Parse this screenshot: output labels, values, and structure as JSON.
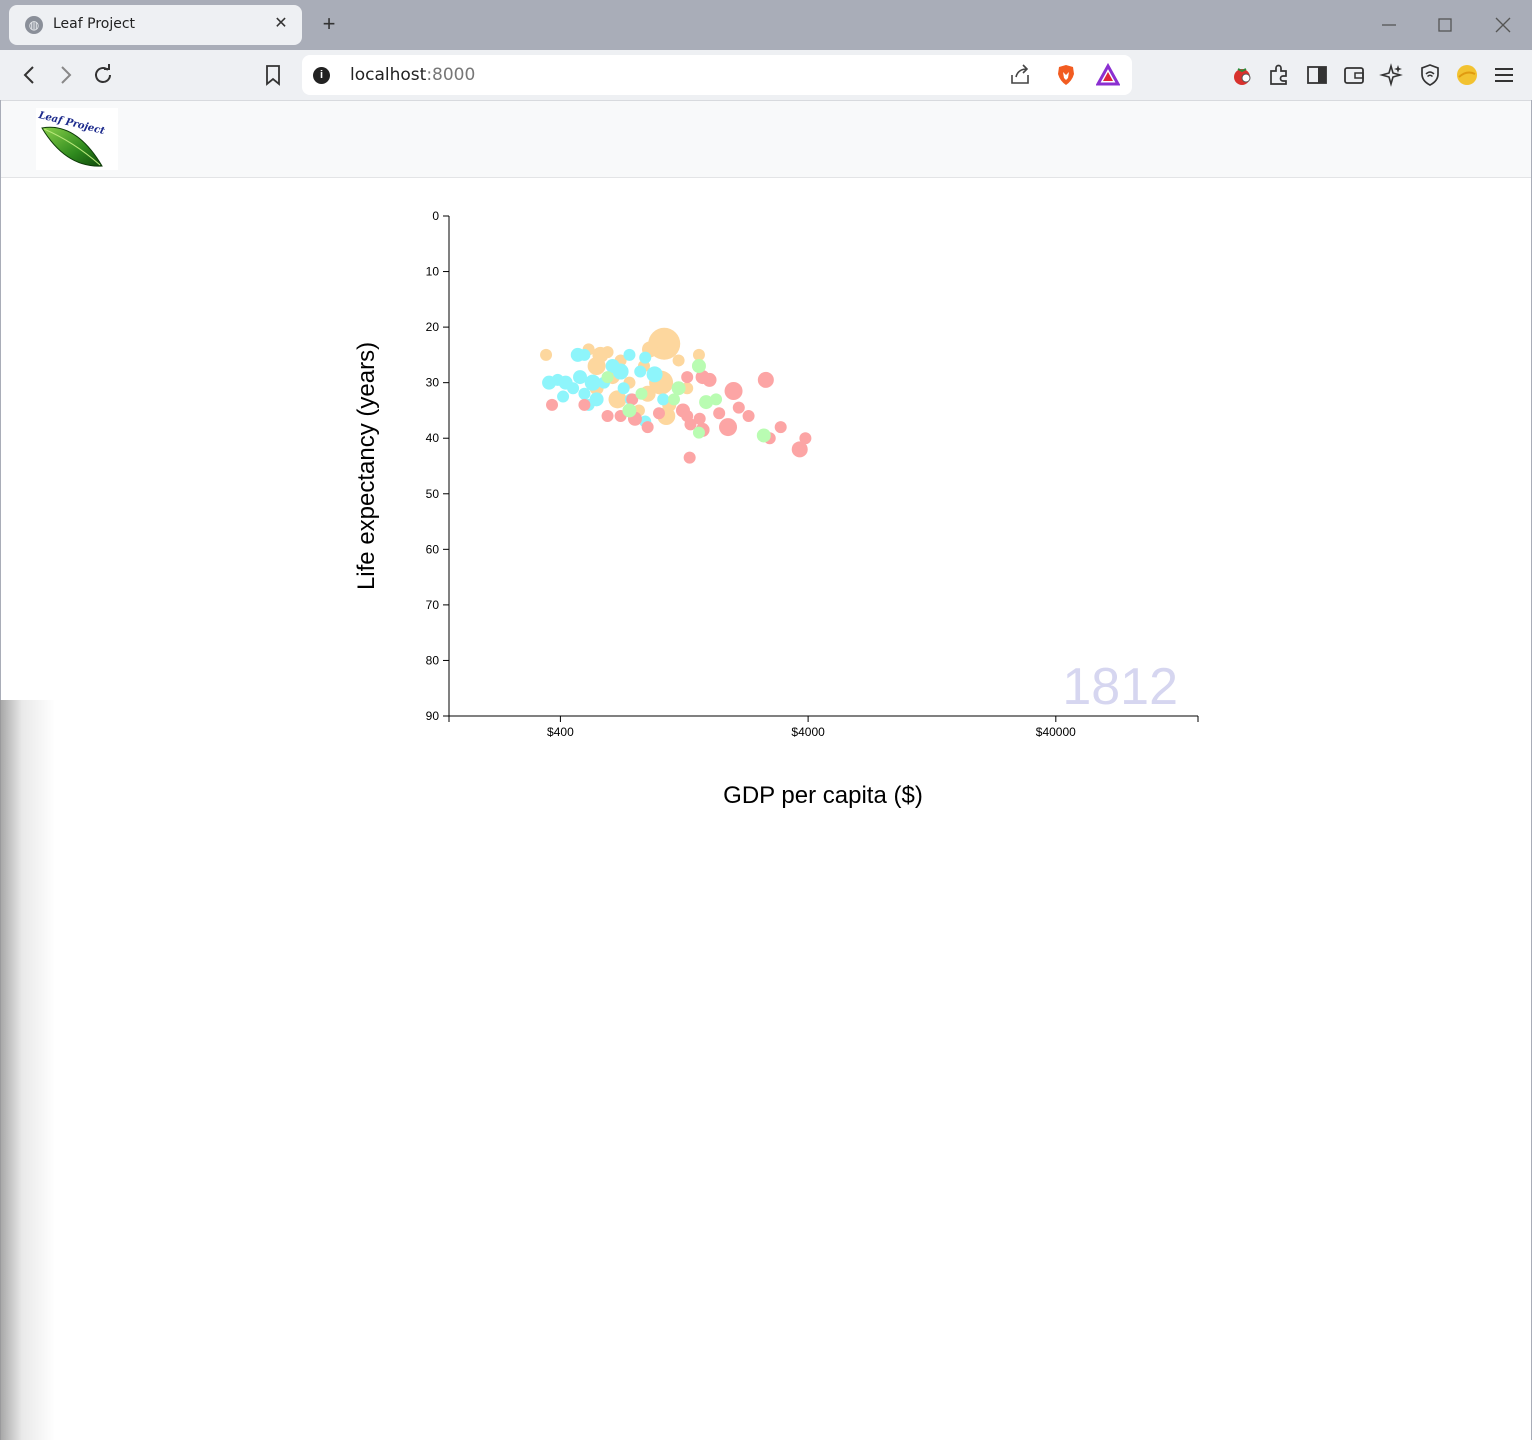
{
  "browser": {
    "tab_title": "Leaf Project",
    "tab_favicon": "globe-icon",
    "new_tab_glyph": "+",
    "close_glyph": "✕",
    "url_host": "localhost",
    "url_port": ":8000"
  },
  "page": {
    "logo_text": "Leaf Project"
  },
  "chart_data": {
    "type": "scatter",
    "title": "",
    "xlabel": "GDP per capita ($)",
    "ylabel": "Life expectancy (years)",
    "x_scale": "log",
    "xlim": [
      142,
      150000
    ],
    "ylim": [
      0,
      90
    ],
    "x_ticks": [
      {
        "value": 400,
        "label": "$400"
      },
      {
        "value": 4000,
        "label": "$4000"
      },
      {
        "value": 40000,
        "label": "$40000"
      }
    ],
    "y_ticks": [
      0,
      10,
      20,
      30,
      40,
      50,
      60,
      70,
      80,
      90
    ],
    "year": "1812",
    "colors": {
      "asia": "#fdd79e",
      "europe": "#fca5a5",
      "africa": "#8ef5fb",
      "americas": "#b9fcb2",
      "year": "#d6d6f0"
    },
    "points": [
      {
        "x": 350,
        "y": 25,
        "r": 6,
        "c": "asia"
      },
      {
        "x": 520,
        "y": 24,
        "r": 6,
        "c": "asia"
      },
      {
        "x": 580,
        "y": 25,
        "r": 8,
        "c": "asia"
      },
      {
        "x": 620,
        "y": 24.5,
        "r": 6,
        "c": "asia"
      },
      {
        "x": 560,
        "y": 27,
        "r": 9,
        "c": "asia"
      },
      {
        "x": 1050,
        "y": 23,
        "r": 16,
        "c": "asia"
      },
      {
        "x": 920,
        "y": 24,
        "r": 8,
        "c": "asia"
      },
      {
        "x": 1450,
        "y": 25,
        "r": 6,
        "c": "asia"
      },
      {
        "x": 1200,
        "y": 26,
        "r": 6,
        "c": "asia"
      },
      {
        "x": 700,
        "y": 26,
        "r": 6,
        "c": "asia"
      },
      {
        "x": 870,
        "y": 27,
        "r": 6,
        "c": "asia"
      },
      {
        "x": 650,
        "y": 29,
        "r": 7,
        "c": "asia"
      },
      {
        "x": 760,
        "y": 30,
        "r": 6,
        "c": "asia"
      },
      {
        "x": 1020,
        "y": 30,
        "r": 12,
        "c": "asia"
      },
      {
        "x": 560,
        "y": 31,
        "r": 7,
        "c": "asia"
      },
      {
        "x": 680,
        "y": 33,
        "r": 9,
        "c": "asia"
      },
      {
        "x": 900,
        "y": 32,
        "r": 8,
        "c": "asia"
      },
      {
        "x": 1100,
        "y": 34,
        "r": 7,
        "c": "asia"
      },
      {
        "x": 1070,
        "y": 36,
        "r": 9,
        "c": "asia"
      },
      {
        "x": 830,
        "y": 35,
        "r": 6,
        "c": "asia"
      },
      {
        "x": 1300,
        "y": 31,
        "r": 6,
        "c": "asia"
      },
      {
        "x": 360,
        "y": 30,
        "r": 7,
        "c": "africa"
      },
      {
        "x": 390,
        "y": 29.5,
        "r": 6,
        "c": "africa"
      },
      {
        "x": 420,
        "y": 30,
        "r": 7,
        "c": "africa"
      },
      {
        "x": 450,
        "y": 31,
        "r": 6,
        "c": "africa"
      },
      {
        "x": 470,
        "y": 25,
        "r": 7,
        "c": "africa"
      },
      {
        "x": 500,
        "y": 25,
        "r": 6,
        "c": "africa"
      },
      {
        "x": 480,
        "y": 29,
        "r": 7,
        "c": "africa"
      },
      {
        "x": 540,
        "y": 30,
        "r": 8,
        "c": "africa"
      },
      {
        "x": 500,
        "y": 32,
        "r": 6,
        "c": "africa"
      },
      {
        "x": 410,
        "y": 32.5,
        "r": 6,
        "c": "africa"
      },
      {
        "x": 560,
        "y": 33,
        "r": 7,
        "c": "africa"
      },
      {
        "x": 600,
        "y": 30,
        "r": 6,
        "c": "africa"
      },
      {
        "x": 650,
        "y": 27,
        "r": 7,
        "c": "africa"
      },
      {
        "x": 700,
        "y": 28,
        "r": 8,
        "c": "africa"
      },
      {
        "x": 760,
        "y": 25,
        "r": 6,
        "c": "africa"
      },
      {
        "x": 720,
        "y": 31,
        "r": 6,
        "c": "africa"
      },
      {
        "x": 880,
        "y": 25.5,
        "r": 6,
        "c": "africa"
      },
      {
        "x": 840,
        "y": 28,
        "r": 6,
        "c": "africa"
      },
      {
        "x": 960,
        "y": 28.5,
        "r": 8,
        "c": "africa"
      },
      {
        "x": 770,
        "y": 33,
        "r": 6,
        "c": "africa"
      },
      {
        "x": 1040,
        "y": 33,
        "r": 6,
        "c": "africa"
      },
      {
        "x": 880,
        "y": 37,
        "r": 6,
        "c": "africa"
      },
      {
        "x": 520,
        "y": 34,
        "r": 6,
        "c": "africa"
      },
      {
        "x": 370,
        "y": 34,
        "r": 6,
        "c": "europe"
      },
      {
        "x": 500,
        "y": 34,
        "r": 6,
        "c": "europe"
      },
      {
        "x": 620,
        "y": 36,
        "r": 6,
        "c": "europe"
      },
      {
        "x": 700,
        "y": 36,
        "r": 6,
        "c": "europe"
      },
      {
        "x": 800,
        "y": 36.5,
        "r": 7,
        "c": "europe"
      },
      {
        "x": 780,
        "y": 33,
        "r": 6,
        "c": "europe"
      },
      {
        "x": 900,
        "y": 38,
        "r": 6,
        "c": "europe"
      },
      {
        "x": 1000,
        "y": 35.5,
        "r": 6,
        "c": "europe"
      },
      {
        "x": 1250,
        "y": 35,
        "r": 7,
        "c": "europe"
      },
      {
        "x": 1340,
        "y": 37.5,
        "r": 6,
        "c": "europe"
      },
      {
        "x": 1300,
        "y": 36,
        "r": 6,
        "c": "europe"
      },
      {
        "x": 1460,
        "y": 36.5,
        "r": 6,
        "c": "europe"
      },
      {
        "x": 1500,
        "y": 38.5,
        "r": 7,
        "c": "europe"
      },
      {
        "x": 1750,
        "y": 35.5,
        "r": 6,
        "c": "europe"
      },
      {
        "x": 1900,
        "y": 38,
        "r": 9,
        "c": "europe"
      },
      {
        "x": 2000,
        "y": 31.5,
        "r": 9,
        "c": "europe"
      },
      {
        "x": 2100,
        "y": 34.5,
        "r": 6,
        "c": "europe"
      },
      {
        "x": 2300,
        "y": 36,
        "r": 6,
        "c": "europe"
      },
      {
        "x": 2700,
        "y": 29.5,
        "r": 8,
        "c": "europe"
      },
      {
        "x": 2800,
        "y": 40,
        "r": 6,
        "c": "europe"
      },
      {
        "x": 3100,
        "y": 38,
        "r": 6,
        "c": "europe"
      },
      {
        "x": 3700,
        "y": 42,
        "r": 8,
        "c": "europe"
      },
      {
        "x": 3900,
        "y": 40,
        "r": 6,
        "c": "europe"
      },
      {
        "x": 1330,
        "y": 43.5,
        "r": 6,
        "c": "europe"
      },
      {
        "x": 1300,
        "y": 29,
        "r": 6,
        "c": "europe"
      },
      {
        "x": 1500,
        "y": 29,
        "r": 7,
        "c": "europe"
      },
      {
        "x": 1600,
        "y": 29.5,
        "r": 7,
        "c": "europe"
      },
      {
        "x": 760,
        "y": 35,
        "r": 7,
        "c": "americas"
      },
      {
        "x": 850,
        "y": 32,
        "r": 6,
        "c": "americas"
      },
      {
        "x": 1150,
        "y": 33,
        "r": 6,
        "c": "americas"
      },
      {
        "x": 1200,
        "y": 31,
        "r": 7,
        "c": "americas"
      },
      {
        "x": 1450,
        "y": 27,
        "r": 7,
        "c": "americas"
      },
      {
        "x": 1550,
        "y": 33.5,
        "r": 7,
        "c": "americas"
      },
      {
        "x": 1700,
        "y": 33,
        "r": 6,
        "c": "americas"
      },
      {
        "x": 1450,
        "y": 39,
        "r": 6,
        "c": "americas"
      },
      {
        "x": 2650,
        "y": 39.5,
        "r": 7,
        "c": "americas"
      },
      {
        "x": 620,
        "y": 29,
        "r": 6,
        "c": "americas"
      }
    ]
  }
}
